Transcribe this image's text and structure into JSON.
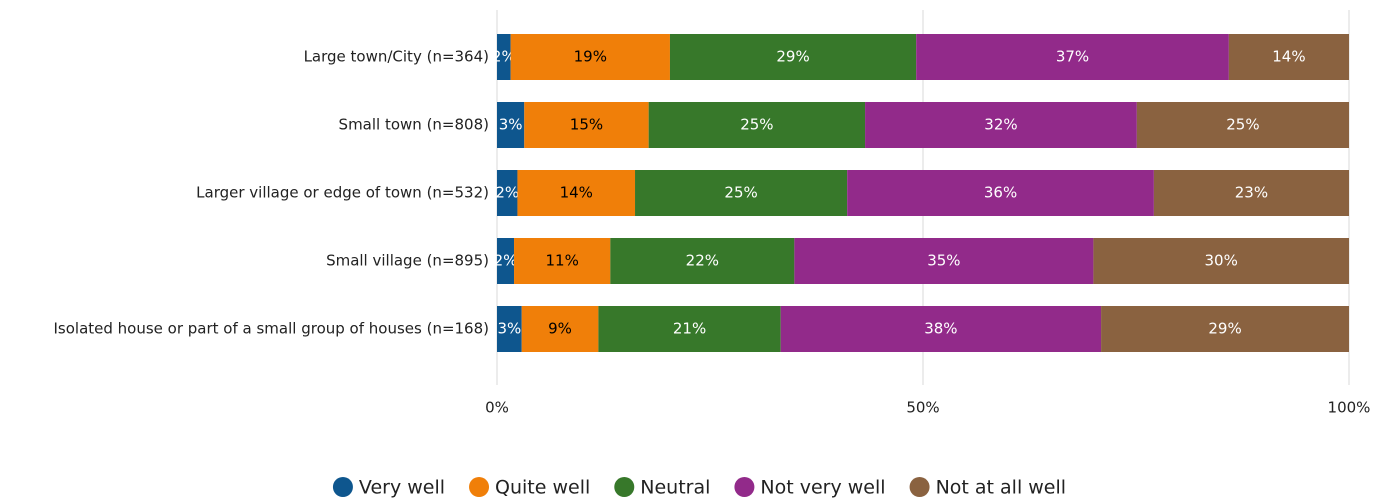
{
  "chart_data": {
    "type": "stacked-barh",
    "categories": [
      "Large town/City (n=364)",
      "Small town (n=808)",
      "Larger village or edge of town (n=532)",
      "Small village (n=895)",
      "Isolated house or part of a small group of houses (n=168)"
    ],
    "series": [
      {
        "name": "Very well",
        "color": "#0e568e",
        "label_color": "#ffffff",
        "values": [
          1.6,
          3.2,
          2.4,
          2.0,
          2.9
        ],
        "value_labels": [
          "2%",
          "3%",
          "2%",
          "2%",
          "3%"
        ]
      },
      {
        "name": "Quite well",
        "color": "#f07f09",
        "label_color": "#000000",
        "values": [
          18.7,
          14.6,
          13.8,
          11.3,
          9.0
        ],
        "value_labels": [
          "19%",
          "15%",
          "14%",
          "11%",
          "9%"
        ]
      },
      {
        "name": "Neutral",
        "color": "#37782a",
        "label_color": "#ffffff",
        "values": [
          28.9,
          25.4,
          24.9,
          21.6,
          21.4
        ],
        "value_labels": [
          "29%",
          "25%",
          "25%",
          "22%",
          "21%"
        ]
      },
      {
        "name": "Not very well",
        "color": "#922a8a",
        "label_color": "#ffffff",
        "values": [
          36.7,
          31.9,
          36.0,
          35.1,
          37.6
        ],
        "value_labels": [
          "37%",
          "32%",
          "36%",
          "35%",
          "38%"
        ]
      },
      {
        "name": "Not at all well",
        "color": "#8a6240",
        "label_color": "#ffffff",
        "values": [
          14.1,
          24.9,
          22.9,
          30.0,
          29.1
        ],
        "value_labels": [
          "14%",
          "25%",
          "23%",
          "30%",
          "29%"
        ]
      }
    ],
    "xlim": [
      0,
      100
    ],
    "xticks": [
      {
        "value": 0,
        "label": "0%"
      },
      {
        "value": 50,
        "label": "50%"
      },
      {
        "value": 100,
        "label": "100%"
      }
    ],
    "grid": true,
    "legend": "bottom"
  }
}
